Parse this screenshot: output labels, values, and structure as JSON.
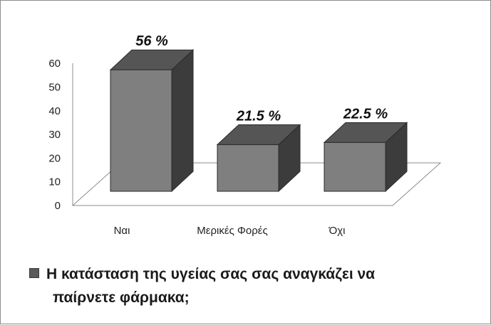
{
  "chart_data": {
    "type": "bar",
    "style": "3d-column",
    "categories": [
      "Ναι",
      "Μερικές Φορές",
      "Όχι"
    ],
    "values": [
      56,
      21.5,
      22.5
    ],
    "data_labels": [
      "56 %",
      "21.5 %",
      "22.5 %"
    ],
    "series": [
      {
        "name": "Η κατάσταση της υγείας σας σας αναγκάζει να παίρνετε φάρμακα;",
        "values": [
          56,
          21.5,
          22.5
        ]
      }
    ],
    "yticks": [
      "0",
      "10",
      "20",
      "30",
      "40",
      "50",
      "60"
    ],
    "ylim": [
      0,
      60
    ],
    "grid": false,
    "legend_position": "bottom",
    "colors": {
      "front": "#7f7f7f",
      "top": "#555555",
      "side": "#3c3c3c"
    }
  },
  "legend": {
    "line1": "Η κατάσταση της υγείας σας σας αναγκάζει να",
    "line2": "παίρνετε φάρμακα;"
  }
}
